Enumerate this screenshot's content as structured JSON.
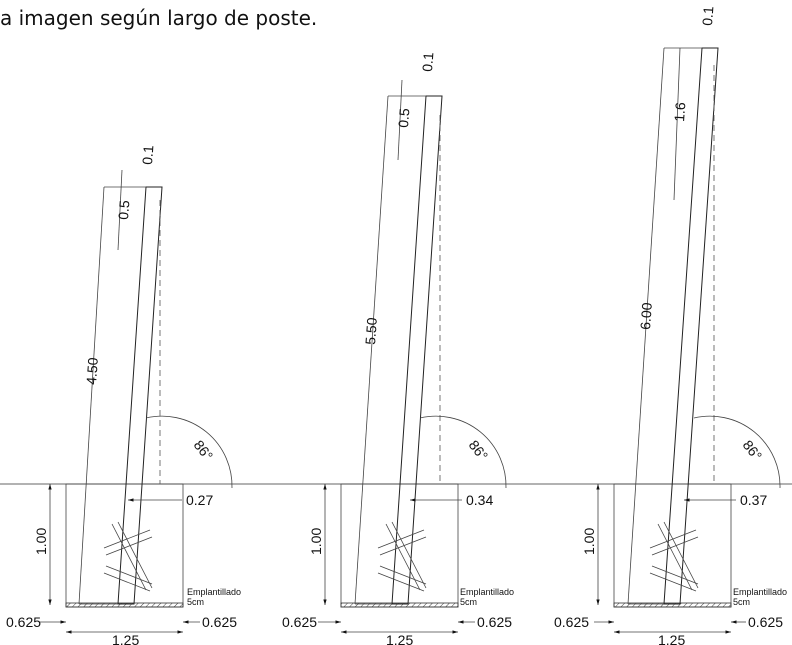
{
  "title": "a imagen según largo de poste.",
  "ground_line_label": "",
  "posts": [
    {
      "length_label": "4.50",
      "top_offset_label": "0.5",
      "top_small_label": "0.1",
      "angle_label": "86°",
      "base_offset_label": "0.27",
      "depth_label": "1.00",
      "pit_width_label": "1.25",
      "side_left_label": "0.625",
      "side_right_label": "0.625",
      "base_note_line1": "Emplantillado",
      "base_note_line2": "5cm"
    },
    {
      "length_label": "5.50",
      "top_offset_label": "0.5",
      "top_small_label": "0.1",
      "angle_label": "86°",
      "base_offset_label": "0.34",
      "depth_label": "1.00",
      "pit_width_label": "1.25",
      "side_left_label": "0.625",
      "side_right_label": "0.625",
      "base_note_line1": "Emplantillado",
      "base_note_line2": "5cm"
    },
    {
      "length_label": "6.00",
      "top_offset_label": "1.6",
      "top_small_label": "0.1",
      "angle_label": "86°",
      "base_offset_label": "0.37",
      "depth_label": "1.00",
      "pit_width_label": "1.25",
      "side_left_label": "0.625",
      "side_right_label": "0.625",
      "base_note_line1": "Emplantillado",
      "base_note_line2": "5cm"
    }
  ]
}
